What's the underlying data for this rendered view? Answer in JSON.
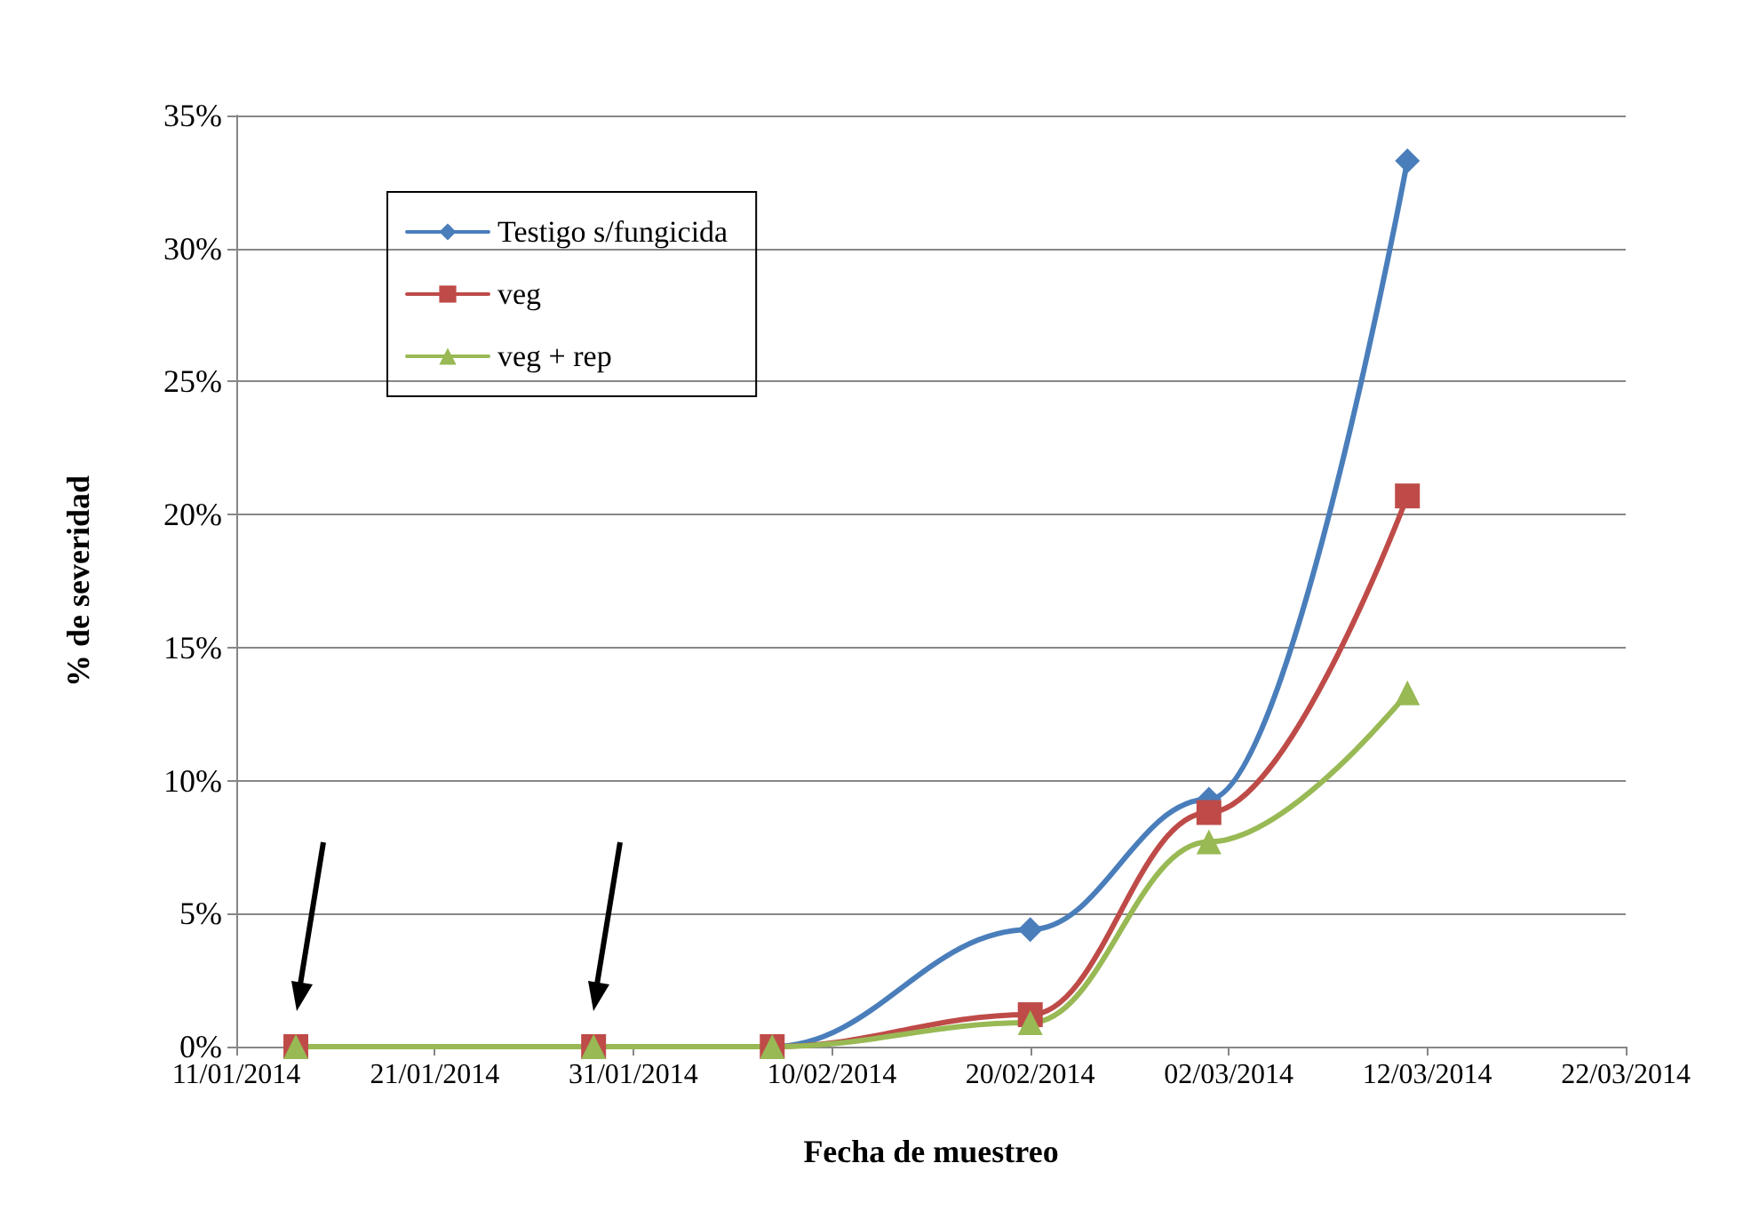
{
  "chart_data": {
    "type": "line",
    "xlabel": "Fecha de muestreo",
    "ylabel": "% de severidad",
    "x": [
      "2014-01-14",
      "2014-01-29",
      "2014-02-07",
      "2014-02-20",
      "2014-03-01",
      "2014-03-11"
    ],
    "series": [
      {
        "name": "Testigo s/fungicida",
        "color": "#4a7ebb",
        "marker": "diamond",
        "values": [
          0,
          0,
          0,
          4.4,
          9.3,
          33.3
        ]
      },
      {
        "name": "veg",
        "color": "#be4b48",
        "marker": "square",
        "values": [
          0,
          0,
          0,
          1.2,
          8.8,
          20.7
        ]
      },
      {
        "name": "veg + rep",
        "color": "#98b954",
        "marker": "triangle",
        "values": [
          0,
          0,
          0,
          0.9,
          7.7,
          13.3
        ]
      }
    ],
    "xlim": [
      "2014-01-11",
      "2014-03-22"
    ],
    "xticks": [
      {
        "value": "2014-01-11",
        "label": "11/01/2014"
      },
      {
        "value": "2014-01-21",
        "label": "21/01/2014"
      },
      {
        "value": "2014-01-31",
        "label": "31/01/2014"
      },
      {
        "value": "2014-02-10",
        "label": "10/02/2014"
      },
      {
        "value": "2014-02-20",
        "label": "20/02/2014"
      },
      {
        "value": "2014-03-02",
        "label": "02/03/2014"
      },
      {
        "value": "2014-03-12",
        "label": "12/03/2014"
      },
      {
        "value": "2014-03-22",
        "label": "22/03/2014"
      }
    ],
    "ylim": [
      0,
      35
    ],
    "yticks": [
      {
        "value": 0,
        "label": "0%"
      },
      {
        "value": 5,
        "label": "5%"
      },
      {
        "value": 10,
        "label": "10%"
      },
      {
        "value": 15,
        "label": "15%"
      },
      {
        "value": 20,
        "label": "20%"
      },
      {
        "value": 25,
        "label": "25%"
      },
      {
        "value": 30,
        "label": "30%"
      },
      {
        "value": 35,
        "label": "35%"
      }
    ],
    "grid": "y",
    "legend": "top left",
    "line_style": "solid"
  }
}
